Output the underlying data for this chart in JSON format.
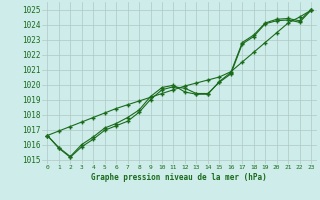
{
  "xlabel": "Graphe pression niveau de la mer (hPa)",
  "hours": [
    0,
    1,
    2,
    3,
    4,
    5,
    6,
    7,
    8,
    9,
    10,
    11,
    12,
    13,
    14,
    15,
    16,
    17,
    18,
    19,
    20,
    21,
    22,
    23
  ],
  "line1": [
    1016.6,
    1015.8,
    1015.2,
    1016.0,
    1016.5,
    1017.1,
    1017.4,
    1017.8,
    1018.3,
    1019.2,
    1019.8,
    1019.95,
    1019.5,
    1019.35,
    1019.35,
    1020.2,
    1020.8,
    1022.8,
    1023.3,
    1024.1,
    1024.35,
    1024.4,
    1024.25,
    1025.0
  ],
  "line2": [
    1016.6,
    1015.75,
    1015.15,
    1015.85,
    1016.35,
    1016.95,
    1017.25,
    1017.55,
    1018.15,
    1019.0,
    1019.65,
    1019.85,
    1019.75,
    1019.4,
    1019.4,
    1020.15,
    1020.7,
    1022.7,
    1023.2,
    1024.05,
    1024.25,
    1024.3,
    1024.15,
    1024.95
  ],
  "line3_straight": [
    1016.6,
    1016.9,
    1017.2,
    1017.5,
    1017.8,
    1018.1,
    1018.4,
    1018.65,
    1018.9,
    1019.15,
    1019.4,
    1019.65,
    1019.9,
    1020.1,
    1020.3,
    1020.5,
    1020.85,
    1021.5,
    1022.15,
    1022.8,
    1023.45,
    1024.1,
    1024.5,
    1024.95
  ],
  "line_color": "#1a6b1a",
  "marker_color": "#1a6b1a",
  "bg_color": "#cdecea",
  "grid_color": "#b0c8c6",
  "text_color": "#1a6b1a",
  "ylim_min": 1014.7,
  "ylim_max": 1025.5,
  "yticks": [
    1015,
    1016,
    1017,
    1018,
    1019,
    1020,
    1021,
    1022,
    1023,
    1024,
    1025
  ]
}
